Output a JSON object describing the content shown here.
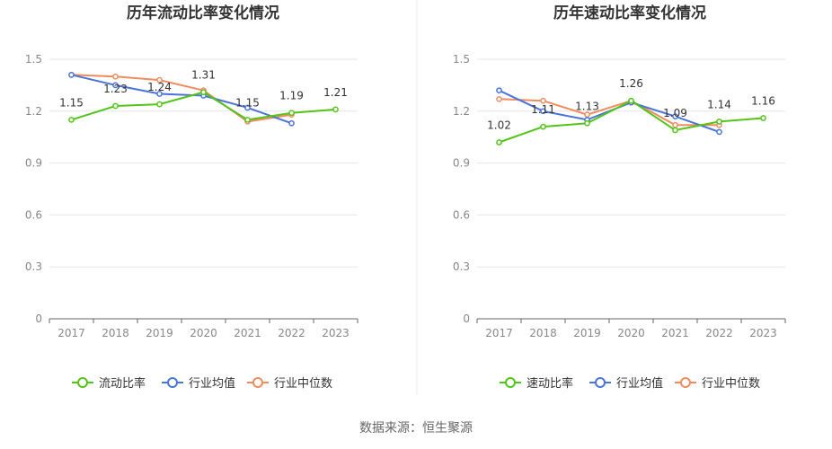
{
  "source": "数据来源：恒生聚源",
  "chart_data": [
    {
      "type": "line",
      "title": "历年流动比率变化情况",
      "x": [
        "2017",
        "2018",
        "2019",
        "2020",
        "2021",
        "2022",
        "2023"
      ],
      "ylim": [
        0,
        1.5
      ],
      "yticks": [
        "0",
        "0.3",
        "0.6",
        "0.9",
        "1.2",
        "1.5"
      ],
      "grid": true,
      "legend": "bottom",
      "series": [
        {
          "name": "流动比率",
          "color": "#52c41a",
          "values": [
            1.15,
            1.23,
            1.24,
            1.31,
            1.15,
            1.19,
            1.21
          ],
          "labels": [
            "1.15",
            "1.23",
            "1.24",
            "1.31",
            "1.15",
            "1.19",
            "1.21"
          ]
        },
        {
          "name": "行业均值",
          "color": "#4a74d8",
          "values": [
            1.41,
            1.35,
            1.3,
            1.29,
            1.22,
            1.13,
            null
          ]
        },
        {
          "name": "行业中位数",
          "color": "#f08c60",
          "values": [
            1.41,
            1.4,
            1.38,
            1.32,
            1.14,
            1.18,
            null
          ]
        }
      ]
    },
    {
      "type": "line",
      "title": "历年速动比率变化情况",
      "x": [
        "2017",
        "2018",
        "2019",
        "2020",
        "2021",
        "2022",
        "2023"
      ],
      "ylim": [
        0,
        1.5
      ],
      "yticks": [
        "0",
        "0.3",
        "0.6",
        "0.9",
        "1.2",
        "1.5"
      ],
      "grid": true,
      "legend": "bottom",
      "series": [
        {
          "name": "速动比率",
          "color": "#52c41a",
          "values": [
            1.02,
            1.11,
            1.13,
            1.26,
            1.09,
            1.14,
            1.16
          ],
          "labels": [
            "1.02",
            "1.11",
            "1.13",
            "1.26",
            "1.09",
            "1.14",
            "1.16"
          ]
        },
        {
          "name": "行业均值",
          "color": "#4a74d8",
          "values": [
            1.32,
            1.2,
            1.15,
            1.25,
            1.17,
            1.08,
            null
          ]
        },
        {
          "name": "行业中位数",
          "color": "#f08c60",
          "values": [
            1.27,
            1.26,
            1.18,
            1.26,
            1.12,
            1.12,
            null
          ]
        }
      ]
    }
  ]
}
